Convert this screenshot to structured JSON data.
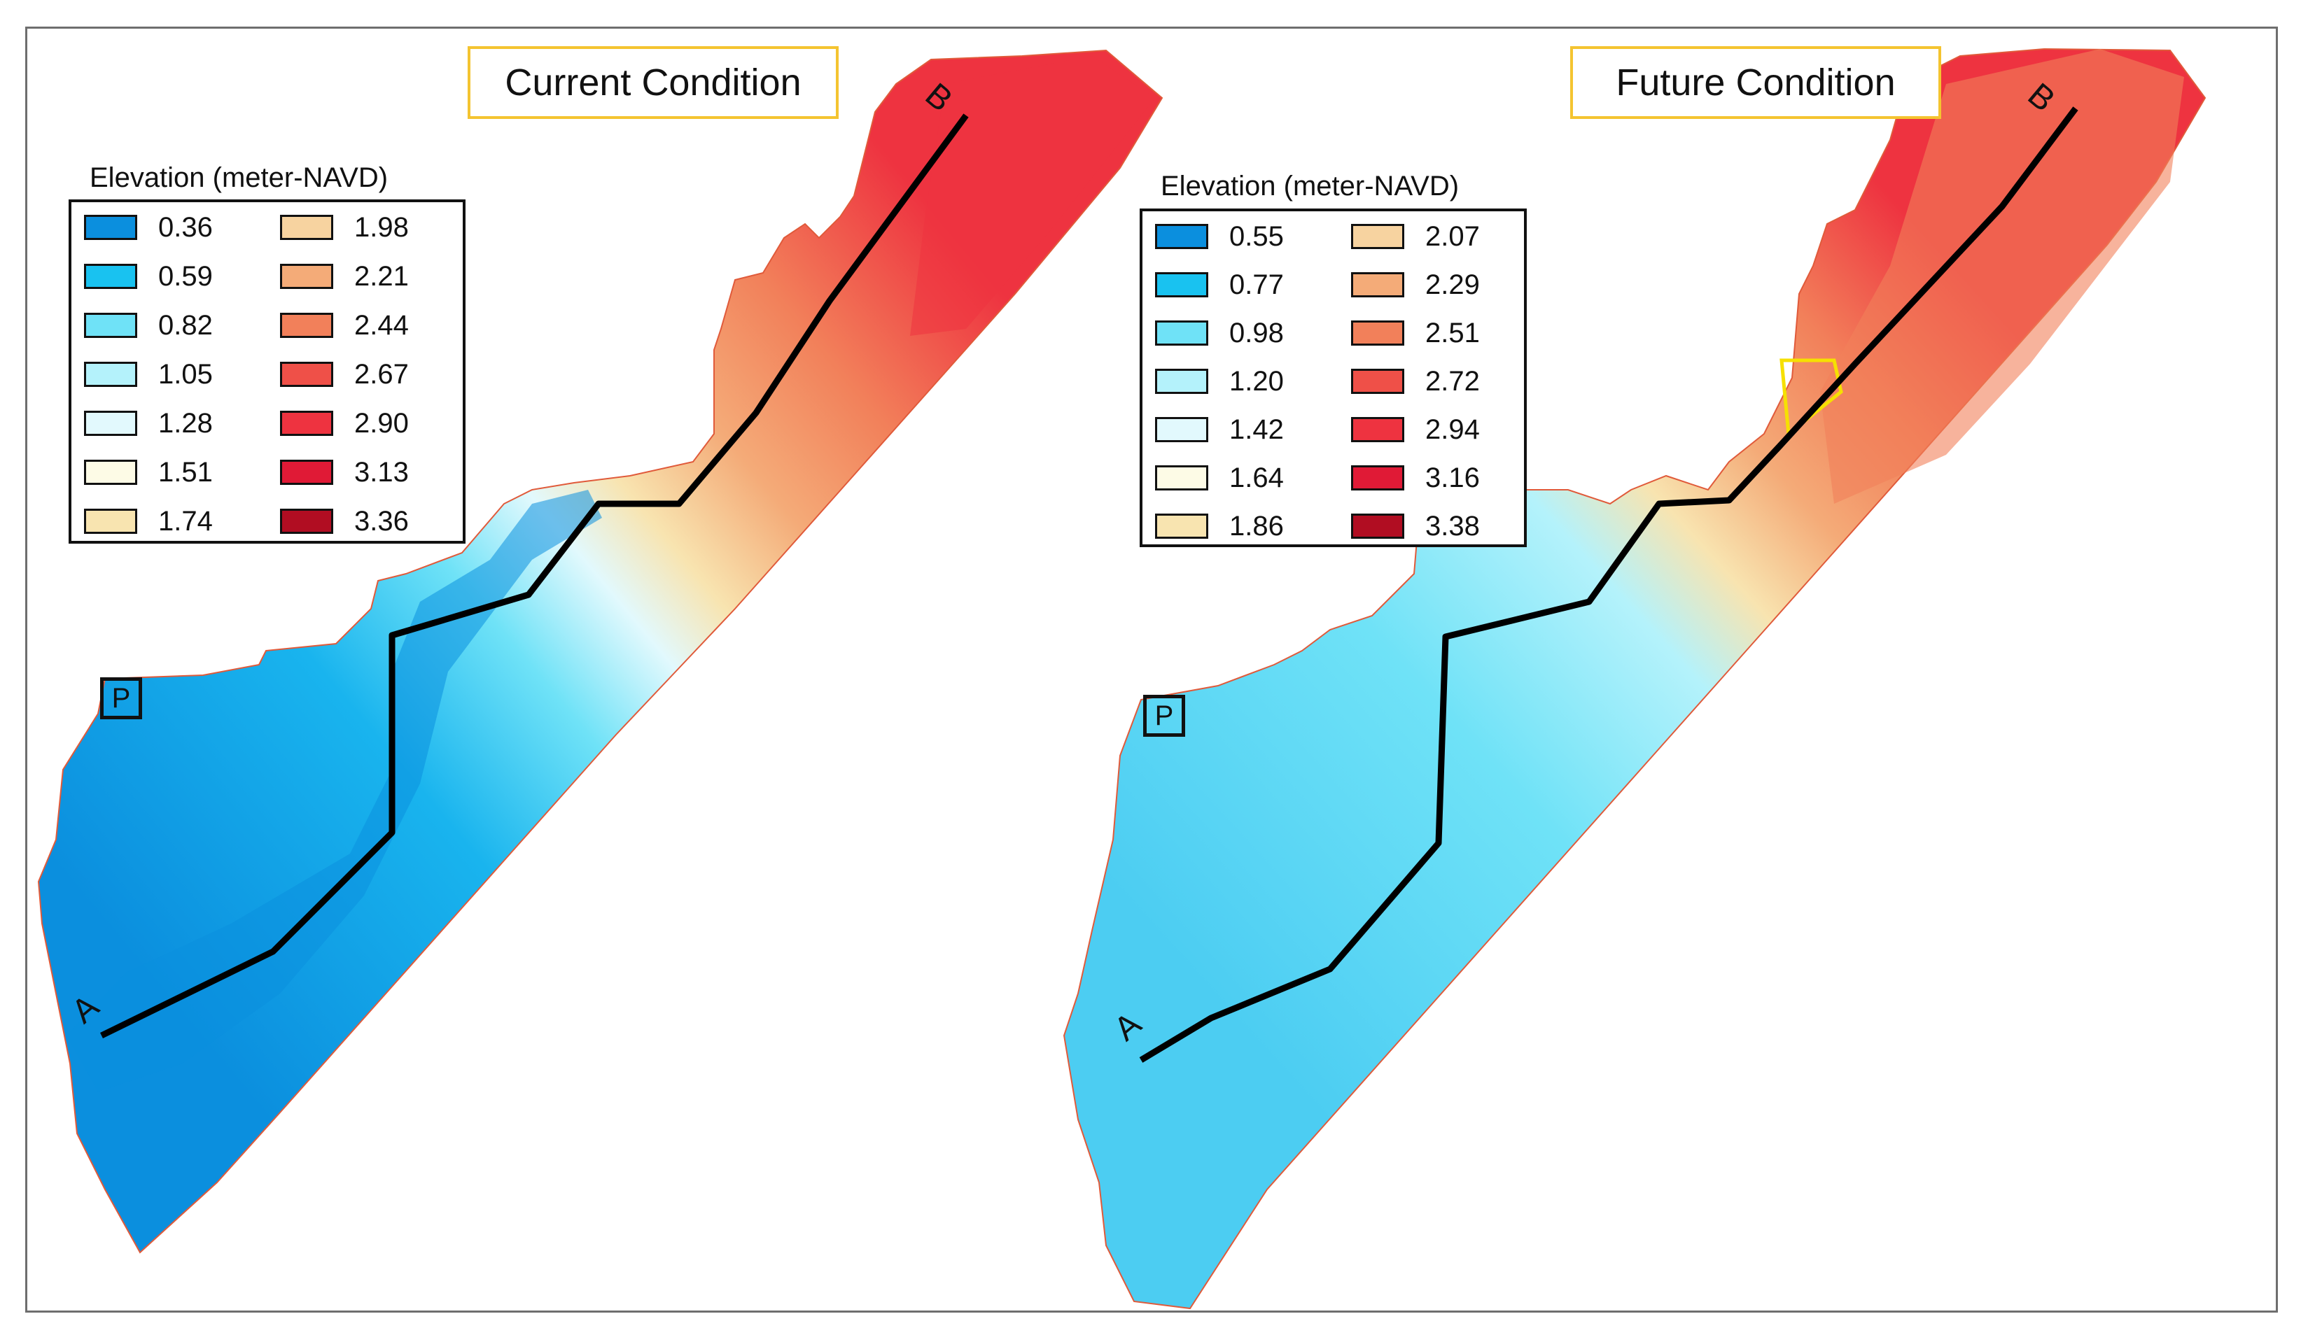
{
  "panels": [
    {
      "title": "Current Condition",
      "legend_title": "Elevation (meter-NAVD)",
      "legend": [
        {
          "label": "0.36",
          "color": "#0b8fde"
        },
        {
          "label": "0.59",
          "color": "#19c2f0"
        },
        {
          "label": "0.82",
          "color": "#6fe2f7"
        },
        {
          "label": "1.05",
          "color": "#b4f2fb"
        },
        {
          "label": "1.28",
          "color": "#e2f9fd"
        },
        {
          "label": "1.51",
          "color": "#fdfbe6"
        },
        {
          "label": "1.74",
          "color": "#f8e4b0"
        },
        {
          "label": "1.98",
          "color": "#f7d3a0"
        },
        {
          "label": "2.21",
          "color": "#f4ab78"
        },
        {
          "label": "2.44",
          "color": "#f2805a"
        },
        {
          "label": "2.67",
          "color": "#ef5048"
        },
        {
          "label": "2.90",
          "color": "#ee3340"
        },
        {
          "label": "3.13",
          "color": "#e01a36"
        },
        {
          "label": "3.36",
          "color": "#b10d22"
        }
      ],
      "marker": "P",
      "start_label": "A",
      "end_label": "B"
    },
    {
      "title": "Future Condition",
      "legend_title": "Elevation (meter-NAVD)",
      "legend": [
        {
          "label": "0.55",
          "color": "#0b8fde"
        },
        {
          "label": "0.77",
          "color": "#19c2f0"
        },
        {
          "label": "0.98",
          "color": "#6fe2f7"
        },
        {
          "label": "1.20",
          "color": "#b4f2fb"
        },
        {
          "label": "1.42",
          "color": "#e2f9fd"
        },
        {
          "label": "1.64",
          "color": "#fdfbe6"
        },
        {
          "label": "1.86",
          "color": "#f8e4b0"
        },
        {
          "label": "2.07",
          "color": "#f7d3a0"
        },
        {
          "label": "2.29",
          "color": "#f4ab78"
        },
        {
          "label": "2.51",
          "color": "#f2805a"
        },
        {
          "label": "2.72",
          "color": "#ef5048"
        },
        {
          "label": "2.94",
          "color": "#ee3340"
        },
        {
          "label": "3.16",
          "color": "#e01a36"
        },
        {
          "label": "3.38",
          "color": "#b10d22"
        }
      ],
      "marker": "P",
      "start_label": "A",
      "end_label": "B"
    }
  ]
}
